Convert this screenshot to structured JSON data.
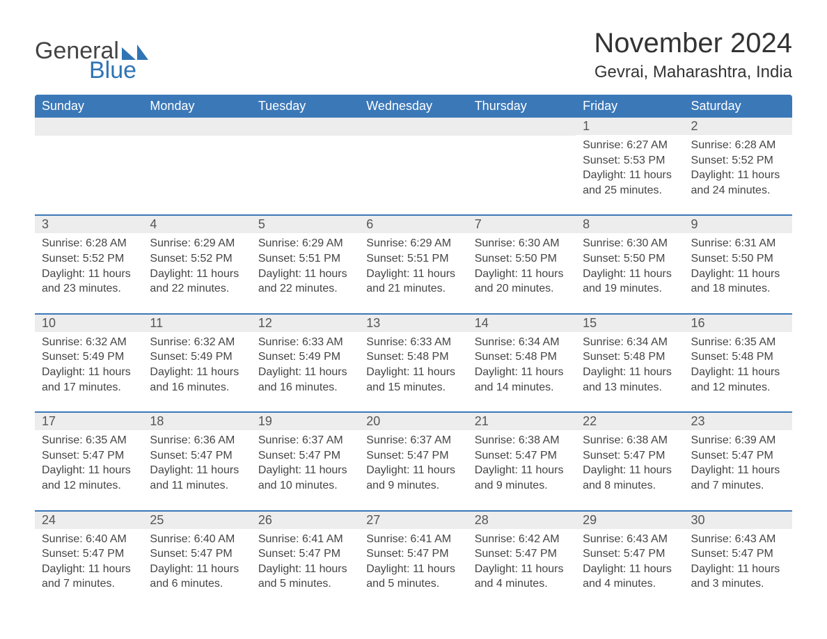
{
  "brand": {
    "text1": "General",
    "text2": "Blue",
    "shape_color": "#2f74b5"
  },
  "title": "November 2024",
  "location": "Gevrai, Maharashtra, India",
  "colors": {
    "header_bg": "#3b78b8",
    "header_text": "#ffffff",
    "row_sep": "#3b78b8",
    "daynum_bg": "#ededed",
    "body_text": "#444444",
    "page_bg": "#ffffff"
  },
  "typography": {
    "title_fontsize": 40,
    "location_fontsize": 24,
    "header_fontsize": 18,
    "daynum_fontsize": 18,
    "body_fontsize": 16,
    "font_family": "Segoe UI"
  },
  "layout": {
    "columns": 7,
    "rows": 5,
    "leading_blanks": 5
  },
  "weekdays": [
    "Sunday",
    "Monday",
    "Tuesday",
    "Wednesday",
    "Thursday",
    "Friday",
    "Saturday"
  ],
  "days": [
    {
      "n": 1,
      "sunrise": "6:27 AM",
      "sunset": "5:53 PM",
      "daylight": "11 hours and 25 minutes."
    },
    {
      "n": 2,
      "sunrise": "6:28 AM",
      "sunset": "5:52 PM",
      "daylight": "11 hours and 24 minutes."
    },
    {
      "n": 3,
      "sunrise": "6:28 AM",
      "sunset": "5:52 PM",
      "daylight": "11 hours and 23 minutes."
    },
    {
      "n": 4,
      "sunrise": "6:29 AM",
      "sunset": "5:52 PM",
      "daylight": "11 hours and 22 minutes."
    },
    {
      "n": 5,
      "sunrise": "6:29 AM",
      "sunset": "5:51 PM",
      "daylight": "11 hours and 22 minutes."
    },
    {
      "n": 6,
      "sunrise": "6:29 AM",
      "sunset": "5:51 PM",
      "daylight": "11 hours and 21 minutes."
    },
    {
      "n": 7,
      "sunrise": "6:30 AM",
      "sunset": "5:50 PM",
      "daylight": "11 hours and 20 minutes."
    },
    {
      "n": 8,
      "sunrise": "6:30 AM",
      "sunset": "5:50 PM",
      "daylight": "11 hours and 19 minutes."
    },
    {
      "n": 9,
      "sunrise": "6:31 AM",
      "sunset": "5:50 PM",
      "daylight": "11 hours and 18 minutes."
    },
    {
      "n": 10,
      "sunrise": "6:32 AM",
      "sunset": "5:49 PM",
      "daylight": "11 hours and 17 minutes."
    },
    {
      "n": 11,
      "sunrise": "6:32 AM",
      "sunset": "5:49 PM",
      "daylight": "11 hours and 16 minutes."
    },
    {
      "n": 12,
      "sunrise": "6:33 AM",
      "sunset": "5:49 PM",
      "daylight": "11 hours and 16 minutes."
    },
    {
      "n": 13,
      "sunrise": "6:33 AM",
      "sunset": "5:48 PM",
      "daylight": "11 hours and 15 minutes."
    },
    {
      "n": 14,
      "sunrise": "6:34 AM",
      "sunset": "5:48 PM",
      "daylight": "11 hours and 14 minutes."
    },
    {
      "n": 15,
      "sunrise": "6:34 AM",
      "sunset": "5:48 PM",
      "daylight": "11 hours and 13 minutes."
    },
    {
      "n": 16,
      "sunrise": "6:35 AM",
      "sunset": "5:48 PM",
      "daylight": "11 hours and 12 minutes."
    },
    {
      "n": 17,
      "sunrise": "6:35 AM",
      "sunset": "5:47 PM",
      "daylight": "11 hours and 12 minutes."
    },
    {
      "n": 18,
      "sunrise": "6:36 AM",
      "sunset": "5:47 PM",
      "daylight": "11 hours and 11 minutes."
    },
    {
      "n": 19,
      "sunrise": "6:37 AM",
      "sunset": "5:47 PM",
      "daylight": "11 hours and 10 minutes."
    },
    {
      "n": 20,
      "sunrise": "6:37 AM",
      "sunset": "5:47 PM",
      "daylight": "11 hours and 9 minutes."
    },
    {
      "n": 21,
      "sunrise": "6:38 AM",
      "sunset": "5:47 PM",
      "daylight": "11 hours and 9 minutes."
    },
    {
      "n": 22,
      "sunrise": "6:38 AM",
      "sunset": "5:47 PM",
      "daylight": "11 hours and 8 minutes."
    },
    {
      "n": 23,
      "sunrise": "6:39 AM",
      "sunset": "5:47 PM",
      "daylight": "11 hours and 7 minutes."
    },
    {
      "n": 24,
      "sunrise": "6:40 AM",
      "sunset": "5:47 PM",
      "daylight": "11 hours and 7 minutes."
    },
    {
      "n": 25,
      "sunrise": "6:40 AM",
      "sunset": "5:47 PM",
      "daylight": "11 hours and 6 minutes."
    },
    {
      "n": 26,
      "sunrise": "6:41 AM",
      "sunset": "5:47 PM",
      "daylight": "11 hours and 5 minutes."
    },
    {
      "n": 27,
      "sunrise": "6:41 AM",
      "sunset": "5:47 PM",
      "daylight": "11 hours and 5 minutes."
    },
    {
      "n": 28,
      "sunrise": "6:42 AM",
      "sunset": "5:47 PM",
      "daylight": "11 hours and 4 minutes."
    },
    {
      "n": 29,
      "sunrise": "6:43 AM",
      "sunset": "5:47 PM",
      "daylight": "11 hours and 4 minutes."
    },
    {
      "n": 30,
      "sunrise": "6:43 AM",
      "sunset": "5:47 PM",
      "daylight": "11 hours and 3 minutes."
    }
  ],
  "labels": {
    "sunrise": "Sunrise:",
    "sunset": "Sunset:",
    "daylight": "Daylight:"
  }
}
